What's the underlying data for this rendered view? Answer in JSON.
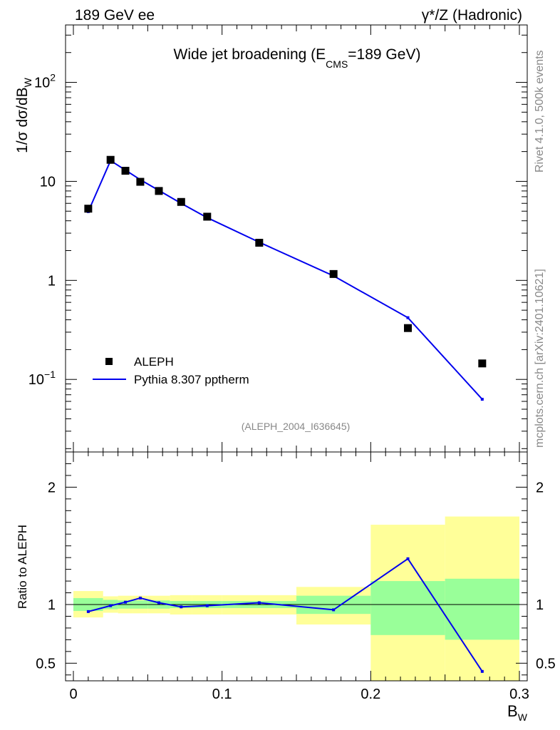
{
  "header": {
    "left": "189 GeV ee",
    "right": "γ*/Z (Hadronic)"
  },
  "side_labels": {
    "rivet": "Rivet 4.1.0,  500k events",
    "mcplots": "mcplots.cern.ch [arXiv:2401.10621]"
  },
  "chart_data": {
    "type": "line",
    "title": "Wide jet broadening (E",
    "title_sub": "CMS",
    "title_tail": "=189 GeV)",
    "analysis_tag": "(ALEPH_2004_I636645)",
    "xlabel": "B",
    "xlabel_sub": "W",
    "ylabel": "1/σ  dσ/dB",
    "ylabel_sub": "W",
    "ratio_ylabel": "Ratio to ALEPH",
    "xlim": [
      0.0,
      0.3
    ],
    "ylim": [
      0.0185,
      380
    ],
    "yscale": "log",
    "ratio_ylim": [
      0.35,
      2.3
    ],
    "x_ticks": [
      "0",
      "0.1",
      "0.2",
      "0.3"
    ],
    "y_ticks": [
      {
        "v": 0.1,
        "base": "10",
        "exp": "−1"
      },
      {
        "v": 1,
        "base": "1",
        "exp": ""
      },
      {
        "v": 10,
        "base": "10",
        "exp": ""
      },
      {
        "v": 100,
        "base": "10",
        "exp": "2"
      }
    ],
    "ratio_ticks": [
      "0.5",
      "1",
      "2"
    ],
    "ratio_tick_values": [
      0.5,
      1,
      2
    ],
    "legend": [
      {
        "name": "ALEPH",
        "marker": "square"
      },
      {
        "name": "Pythia 8.307 pptherm",
        "marker": "line",
        "color": "#0000ee"
      }
    ],
    "data": {
      "name": "ALEPH",
      "x": [
        0.01,
        0.025,
        0.035,
        0.045,
        0.0575,
        0.0725,
        0.09,
        0.125,
        0.175,
        0.225,
        0.275
      ],
      "y": [
        5.3,
        16.5,
        12.8,
        9.9,
        8.0,
        6.2,
        4.4,
        2.4,
        1.16,
        0.33,
        0.145
      ]
    },
    "mc": {
      "name": "Pythia 8.307 pptherm",
      "color": "#0000ee",
      "x": [
        0.01,
        0.025,
        0.035,
        0.045,
        0.0575,
        0.0725,
        0.09,
        0.125,
        0.175,
        0.225,
        0.275
      ],
      "y": [
        4.95,
        16.2,
        13.0,
        10.4,
        8.1,
        6.0,
        4.3,
        2.43,
        1.11,
        0.42,
        0.063
      ]
    },
    "ratio": {
      "x": [
        0.01,
        0.025,
        0.035,
        0.045,
        0.0575,
        0.0725,
        0.09,
        0.125,
        0.175,
        0.225,
        0.275
      ],
      "y": [
        0.94,
        0.99,
        1.02,
        1.055,
        1.015,
        0.98,
        0.99,
        1.015,
        0.955,
        1.39,
        0.43
      ]
    },
    "bands": {
      "edges": [
        0.0,
        0.02,
        0.03,
        0.04,
        0.05,
        0.065,
        0.08,
        0.1,
        0.15,
        0.2,
        0.25,
        0.3
      ],
      "green_lo": [
        0.945,
        0.96,
        0.965,
        0.965,
        0.965,
        0.97,
        0.97,
        0.97,
        0.92,
        0.74,
        0.7
      ],
      "green_hi": [
        1.055,
        1.04,
        1.035,
        1.035,
        1.035,
        1.03,
        1.03,
        1.03,
        1.075,
        1.2,
        1.22
      ],
      "yellow_lo": [
        0.89,
        0.93,
        0.925,
        0.925,
        0.925,
        0.915,
        0.915,
        0.915,
        0.83,
        0.35,
        0.35
      ],
      "yellow_hi": [
        1.115,
        1.07,
        1.075,
        1.075,
        1.075,
        1.08,
        1.08,
        1.08,
        1.15,
        1.68,
        1.75
      ]
    }
  }
}
